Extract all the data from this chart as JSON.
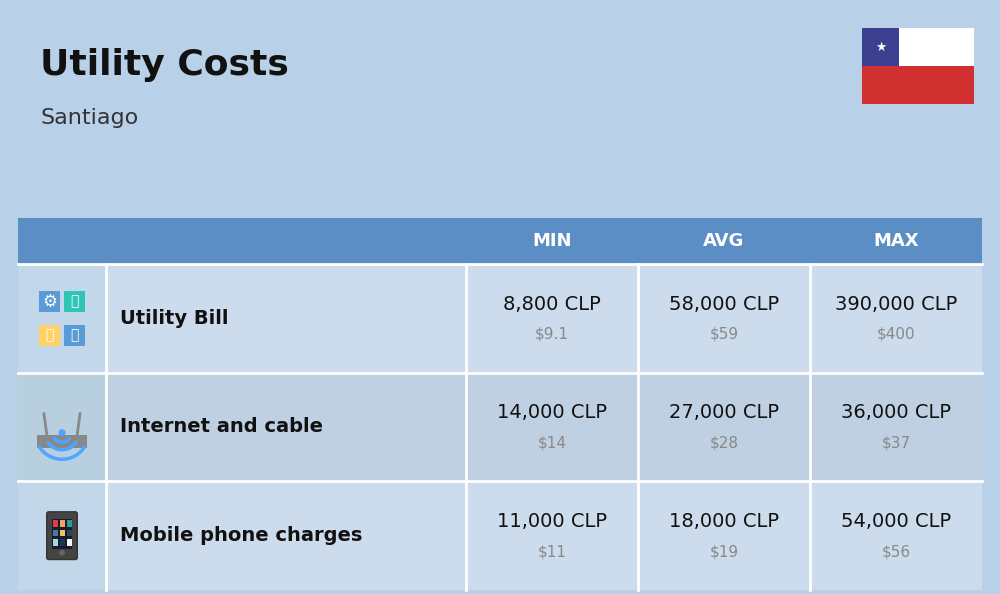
{
  "title": "Utility Costs",
  "subtitle": "Santiago",
  "background_color": "#b8d0e8",
  "header_bg_color": "#5b8ec4",
  "header_text_color": "#ffffff",
  "row_bg_color_odd": "#ccdcec",
  "row_bg_color_even": "#bfd0e2",
  "icon_col_bg_odd": "#c2d8ea",
  "icon_col_bg_even": "#b8cfe0",
  "divider_color": "#ffffff",
  "col_headers": [
    "MIN",
    "AVG",
    "MAX"
  ],
  "rows": [
    {
      "label": "Utility Bill",
      "min_clp": "8,800 CLP",
      "min_usd": "$9.1",
      "avg_clp": "58,000 CLP",
      "avg_usd": "$59",
      "max_clp": "390,000 CLP",
      "max_usd": "$400"
    },
    {
      "label": "Internet and cable",
      "min_clp": "14,000 CLP",
      "min_usd": "$14",
      "avg_clp": "27,000 CLP",
      "avg_usd": "$28",
      "max_clp": "36,000 CLP",
      "max_usd": "$37"
    },
    {
      "label": "Mobile phone charges",
      "min_clp": "11,000 CLP",
      "min_usd": "$11",
      "avg_clp": "18,000 CLP",
      "avg_usd": "$19",
      "max_clp": "54,000 CLP",
      "max_usd": "$56"
    }
  ],
  "clp_fontsize": 14,
  "usd_fontsize": 11,
  "label_fontsize": 14,
  "header_fontsize": 13,
  "title_fontsize": 26,
  "subtitle_fontsize": 16,
  "flag_colors": {
    "blue": "#3a3f8f",
    "red": "#d0302f",
    "white": "#ffffff"
  }
}
